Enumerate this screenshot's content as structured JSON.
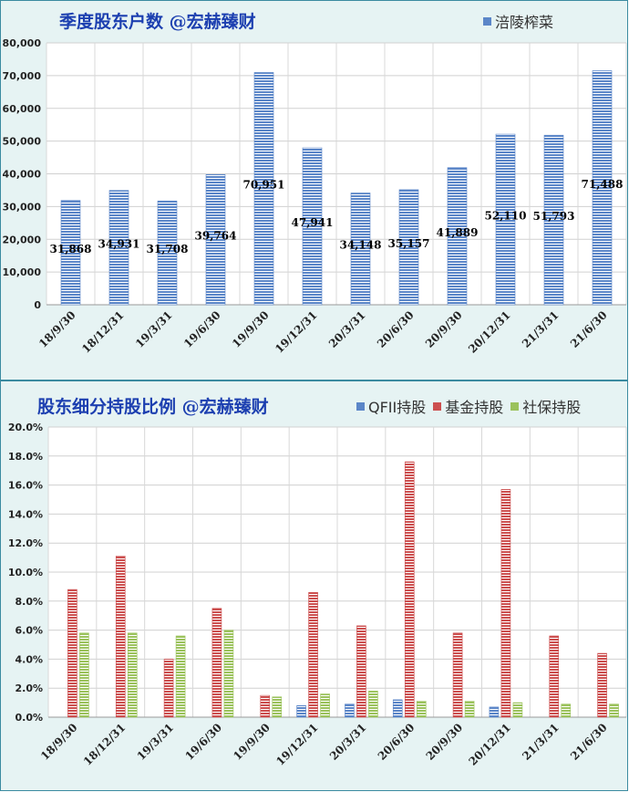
{
  "colors": {
    "blue": "#5b86c8",
    "red": "#cc4f4f",
    "green": "#9bc25c"
  },
  "chart_data": [
    {
      "type": "bar",
      "title": "季度股东户数 @宏赫臻财",
      "categories": [
        "18/9/30",
        "18/12/31",
        "19/3/31",
        "19/6/30",
        "19/9/30",
        "19/12/31",
        "20/3/31",
        "20/6/30",
        "20/9/30",
        "20/12/31",
        "21/3/31",
        "21/6/30"
      ],
      "series": [
        {
          "name": "涪陵榨菜",
          "values": [
            31868,
            34931,
            31708,
            39764,
            70951,
            47941,
            34148,
            35157,
            41889,
            52110,
            51793,
            71488
          ]
        }
      ],
      "data_labels": [
        "31,868",
        "34,931",
        "31,708",
        "39,764",
        "70,951",
        "47,941",
        "34,148",
        "35,157",
        "41,889",
        "52,110",
        "51,793",
        "71,488"
      ],
      "yticks": [
        "0",
        "10,000",
        "20,000",
        "30,000",
        "40,000",
        "50,000",
        "60,000",
        "70,000",
        "80,000"
      ],
      "ylim": [
        0,
        80000
      ],
      "legend_position": "top-right",
      "grid": true
    },
    {
      "type": "bar",
      "title": "股东细分持股比例 @宏赫臻财",
      "categories": [
        "18/9/30",
        "18/12/31",
        "19/3/31",
        "19/6/30",
        "19/9/30",
        "19/12/31",
        "20/3/31",
        "20/6/30",
        "20/9/30",
        "20/12/31",
        "21/3/31",
        "21/6/30"
      ],
      "series": [
        {
          "name": "QFII持股",
          "values": [
            0,
            0,
            0,
            0,
            0,
            0.8,
            0.9,
            1.2,
            0,
            0.7,
            0,
            0
          ]
        },
        {
          "name": "基金持股",
          "values": [
            8.8,
            11.1,
            4.0,
            7.5,
            1.5,
            8.6,
            6.3,
            17.6,
            5.8,
            15.7,
            5.6,
            4.4
          ]
        },
        {
          "name": "社保持股",
          "values": [
            5.8,
            5.8,
            5.6,
            6.0,
            1.4,
            1.6,
            1.8,
            1.1,
            1.1,
            1.0,
            0.9,
            0.9
          ]
        }
      ],
      "yticks": [
        "0.0%",
        "2.0%",
        "4.0%",
        "6.0%",
        "8.0%",
        "10.0%",
        "12.0%",
        "14.0%",
        "16.0%",
        "18.0%",
        "20.0%"
      ],
      "ylim": [
        0,
        20
      ],
      "legend_position": "top-right",
      "grid": true
    }
  ]
}
